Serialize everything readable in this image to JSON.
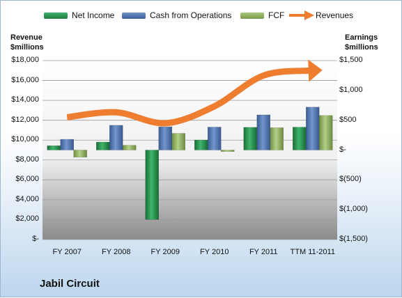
{
  "chart_data": {
    "type": "bar",
    "company": "Jabil Circuit",
    "categories": [
      "FY 2007",
      "FY 2008",
      "FY 2009",
      "FY 2010",
      "FY 2011",
      "TTM 11-2011"
    ],
    "left_axis": {
      "label": "Revenue\n$millions",
      "min": 0,
      "max": 18000,
      "step": 2000,
      "ticks": [
        "$-",
        "$2,000",
        "$4,000",
        "$6,000",
        "$8,000",
        "$10,000",
        "$12,000",
        "$14,000",
        "$16,000",
        "$18,000"
      ]
    },
    "right_axis": {
      "label": "Earnings\n$millions",
      "min": -1500,
      "max": 1500,
      "step": 500,
      "ticks": [
        "$(1,500)",
        "$(1,000)",
        "$(500)",
        "$-",
        "$500",
        "$1,000",
        "$1,500"
      ]
    },
    "series": [
      {
        "name": "Net Income",
        "type": "bar",
        "axis": "right",
        "color": "#1f8a47",
        "values": [
          73,
          134,
          -1165,
          169,
          381,
          384
        ]
      },
      {
        "name": "Cash from Operations",
        "type": "bar",
        "axis": "right",
        "color": "#4f73ad",
        "values": [
          180,
          415,
          390,
          385,
          590,
          720
        ]
      },
      {
        "name": "FCF",
        "type": "bar",
        "axis": "right",
        "color": "#90b060",
        "values": [
          -120,
          80,
          280,
          -25,
          375,
          580
        ]
      },
      {
        "name": "Revenues",
        "type": "line",
        "axis": "left",
        "color": "#ee7d30",
        "values": [
          12300,
          12800,
          11700,
          13400,
          16500,
          17000
        ]
      }
    ],
    "gridlines": true,
    "legend": "top"
  }
}
